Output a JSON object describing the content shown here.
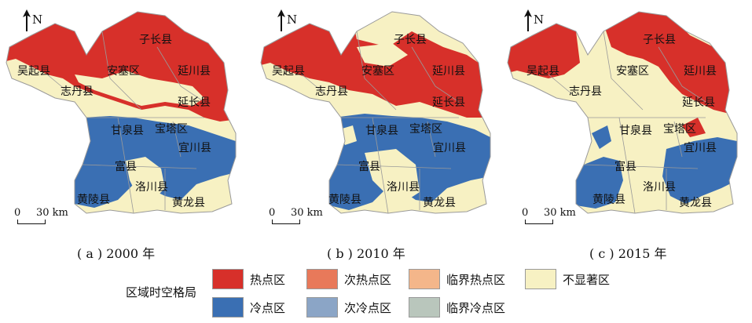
{
  "north_label": "N",
  "scale_zero": "0",
  "scale_distance": "30 km",
  "panels": [
    {
      "caption": "( a ) 2000 年",
      "variant": 0
    },
    {
      "caption": "( b ) 2010 年",
      "variant": 1
    },
    {
      "caption": "( c ) 2015 年",
      "variant": 2
    }
  ],
  "counties": {
    "zichang": "子长县",
    "wuqi": "吴起县",
    "ansai": "安塞区",
    "yanchuan": "延川县",
    "zhidan": "志丹县",
    "yanchang": "延长县",
    "ganquan": "甘泉县",
    "baota": "宝塔区",
    "yichuan": "宜川县",
    "fuxian": "富县",
    "luochuan": "洛川县",
    "huangling": "黄陵县",
    "huanglong": "黄龙县"
  },
  "legend": {
    "title": "区域时空格局",
    "items": [
      {
        "label": "热点区",
        "color": "#d7302a"
      },
      {
        "label": "次热点区",
        "color": "#e8795a"
      },
      {
        "label": "临界热点区",
        "color": "#f4b68a"
      },
      {
        "label": "不显著区",
        "color": "#f7f1c3"
      },
      {
        "label": "冷点区",
        "color": "#3a6fb3"
      },
      {
        "label": "次冷点区",
        "color": "#8ba5c6"
      },
      {
        "label": "临界冷点区",
        "color": "#b9c6bc"
      }
    ]
  },
  "colors": {
    "hot": "#d7302a",
    "neutral": "#f7f1c3",
    "cold": "#3a6fb3",
    "border": "#9a9a9a"
  }
}
